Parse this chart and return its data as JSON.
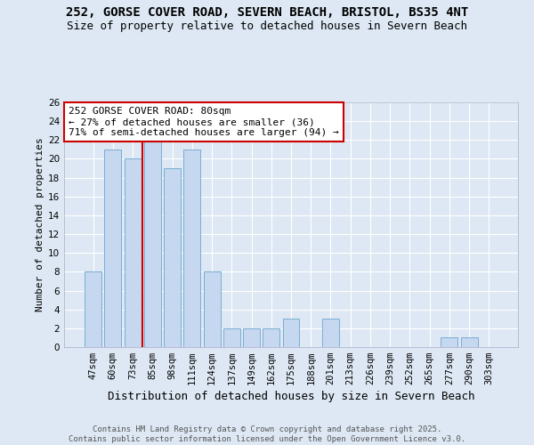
{
  "title1": "252, GORSE COVER ROAD, SEVERN BEACH, BRISTOL, BS35 4NT",
  "title2": "Size of property relative to detached houses in Severn Beach",
  "xlabel": "Distribution of detached houses by size in Severn Beach",
  "ylabel": "Number of detached properties",
  "categories": [
    "47sqm",
    "60sqm",
    "73sqm",
    "85sqm",
    "98sqm",
    "111sqm",
    "124sqm",
    "137sqm",
    "149sqm",
    "162sqm",
    "175sqm",
    "188sqm",
    "201sqm",
    "213sqm",
    "226sqm",
    "239sqm",
    "252sqm",
    "265sqm",
    "277sqm",
    "290sqm",
    "303sqm"
  ],
  "values": [
    8,
    21,
    20,
    22,
    19,
    21,
    8,
    2,
    2,
    2,
    3,
    0,
    3,
    0,
    0,
    0,
    0,
    0,
    1,
    1,
    0
  ],
  "bar_color": "#c5d8ef",
  "bar_edge_color": "#7aadd4",
  "property_line_x": 2.5,
  "property_line_color": "#cc0000",
  "annotation_text": "252 GORSE COVER ROAD: 80sqm\n← 27% of detached houses are smaller (36)\n71% of semi-detached houses are larger (94) →",
  "annotation_box_color": "#ffffff",
  "annotation_box_edge_color": "#cc0000",
  "ylim": [
    0,
    26
  ],
  "yticks": [
    0,
    2,
    4,
    6,
    8,
    10,
    12,
    14,
    16,
    18,
    20,
    22,
    24,
    26
  ],
  "background_color": "#dde8f4",
  "footer": "Contains HM Land Registry data © Crown copyright and database right 2025.\nContains public sector information licensed under the Open Government Licence v3.0.",
  "title1_fontsize": 10,
  "title2_fontsize": 9,
  "xlabel_fontsize": 9,
  "ylabel_fontsize": 8,
  "annotation_fontsize": 8,
  "footer_fontsize": 6.5,
  "tick_fontsize": 7.5
}
